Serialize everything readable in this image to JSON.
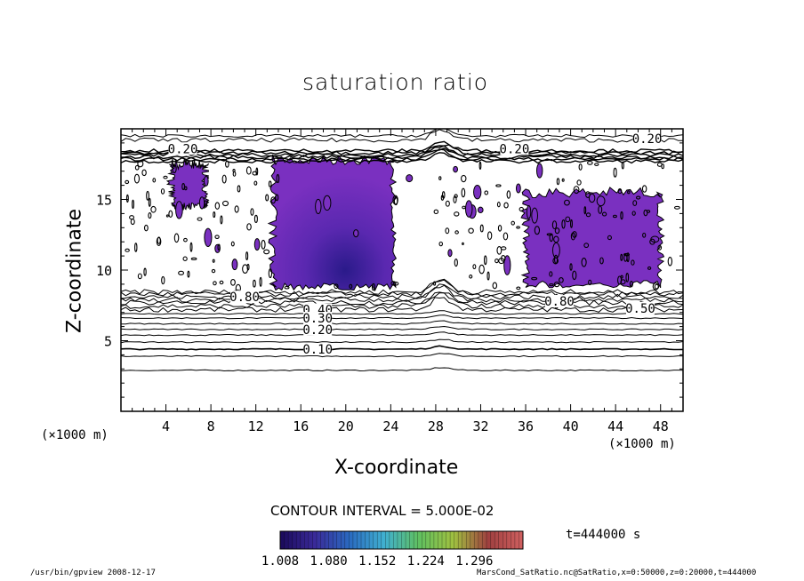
{
  "chart_data": {
    "type": "heatmap",
    "title": "saturation ratio",
    "xlabel": "X-coordinate",
    "ylabel": "Z-coordinate",
    "x_unit_label": "(×1000 m)",
    "xlim": [
      0,
      50
    ],
    "ylim": [
      0,
      20
    ],
    "x_ticks": [
      4,
      8,
      12,
      16,
      20,
      24,
      28,
      32,
      36,
      40,
      44,
      48
    ],
    "y_ticks": [
      5,
      10,
      15
    ],
    "contour_interval_label": "CONTOUR INTERVAL = 5.000E-02",
    "contour_labels": [
      {
        "text": "0.20",
        "x": 46.8,
        "z": 19.3
      },
      {
        "text": "0.20",
        "x": 5.5,
        "z": 18.6
      },
      {
        "text": "0.20",
        "x": 35.0,
        "z": 18.6
      },
      {
        "text": "0.80",
        "x": 11.0,
        "z": 8.1
      },
      {
        "text": "0.80",
        "x": 39.0,
        "z": 7.8
      },
      {
        "text": "0.50",
        "x": 46.2,
        "z": 7.3
      },
      {
        "text": "0.40",
        "x": 17.5,
        "z": 7.2
      },
      {
        "text": "0.30",
        "x": 17.5,
        "z": 6.6
      },
      {
        "text": "0.20",
        "x": 17.5,
        "z": 5.8
      },
      {
        "text": "0.10",
        "x": 17.5,
        "z": 4.4
      }
    ],
    "shaded_regions": [
      {
        "x": [
          13.5,
          24.2
        ],
        "z": [
          8.8,
          17.8
        ],
        "min_value": 1.008
      },
      {
        "x": [
          36.0,
          48.0
        ],
        "z": [
          9.0,
          15.5
        ],
        "min_value": 1.008
      },
      {
        "x": [
          4.5,
          7.5
        ],
        "z": [
          14.5,
          17.5
        ],
        "min_value": 1.008
      }
    ],
    "colorbar": {
      "min": 1.008,
      "max": 1.368,
      "tick_labels": [
        "1.008",
        "1.080",
        "1.152",
        "1.224",
        "1.296"
      ],
      "colors": [
        "#1a0a5a",
        "#3a2a9a",
        "#2a6ac0",
        "#40b0d0",
        "#60c060",
        "#a0c040",
        "#a04040",
        "#d06060"
      ]
    },
    "shade_color": "#7a30c0"
  },
  "time_label": "t=444000 s",
  "footer": {
    "left": "/usr/bin/gpview   2008-12-17",
    "right": "MarsCond_SatRatio.nc@SatRatio,x=0:50000,z=0:20000,t=444000"
  }
}
